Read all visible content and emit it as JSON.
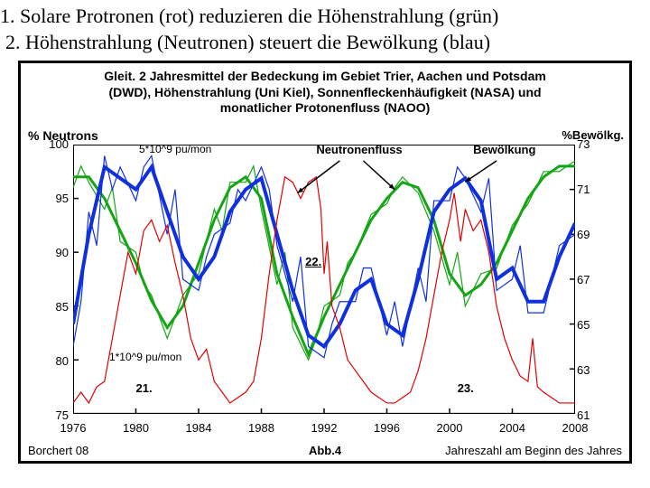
{
  "caption": {
    "line1": "1. Solare Protronen (rot) reduzieren die Höhenstrahlung (grün)",
    "line2": "2. Höhenstrahlung (Neutronen) steuert die Bewölkung (blau)"
  },
  "chart": {
    "title_l1": "Gleit. 2 Jahresmittel der Bedeckung im Gebiet Trier, Aachen und Potsdam",
    "title_l2": "(DWD), Höhenstrahlung (Uni Kiel), Sonnenfleckenhäufigkeit (NASA) und",
    "title_l3": "monatlicher Protonenfluss (NAOO)",
    "left_axis_label": "% Neutrons",
    "right_axis_label": "%Bewölkg.",
    "left_ticks": [
      100,
      95,
      90,
      85,
      80,
      75
    ],
    "right_ticks": [
      73,
      71,
      69,
      67,
      65,
      63,
      61
    ],
    "x_ticks": [
      1976,
      1980,
      1984,
      1988,
      1992,
      1996,
      2000,
      2004,
      2008
    ],
    "x_min": 1976,
    "x_max": 2008,
    "yl_min": 75,
    "yl_max": 100,
    "yr_min": 61,
    "yr_max": 73,
    "colors": {
      "green": "#14a514",
      "blue": "#1030e0",
      "red": "#e00000",
      "axis": "#000000",
      "bg": "#ffffff"
    },
    "line_widths": {
      "green_thick": 3,
      "blue_thick": 4,
      "red": 1.2,
      "thin": 1.2
    },
    "annotations": {
      "neutronenfluss": "Neutronenfluss",
      "bewoelkung": "Bewölkung",
      "upper_note": "5*10^9 pu/mon",
      "lower_note": "1*10^9 pu/mon",
      "cyc21": "21.",
      "cyc22": "22.",
      "cyc23": "23."
    },
    "footer": {
      "left": "Borchert 08",
      "center": "Abb.4",
      "right": "Jahreszahl am Beginn des Jahres"
    },
    "series": {
      "green_thick": [
        [
          1976,
          97
        ],
        [
          1977,
          97
        ],
        [
          1978,
          95
        ],
        [
          1979,
          92
        ],
        [
          1980,
          89
        ],
        [
          1981,
          85.5
        ],
        [
          1982,
          83
        ],
        [
          1983,
          85
        ],
        [
          1984,
          89
        ],
        [
          1985,
          93
        ],
        [
          1986,
          96
        ],
        [
          1987,
          97
        ],
        [
          1988,
          95
        ],
        [
          1989,
          88
        ],
        [
          1990,
          84
        ],
        [
          1991,
          80.5
        ],
        [
          1992,
          84
        ],
        [
          1993,
          87
        ],
        [
          1994,
          90
        ],
        [
          1995,
          93
        ],
        [
          1996,
          95
        ],
        [
          1997,
          96.5
        ],
        [
          1998,
          96
        ],
        [
          1999,
          93
        ],
        [
          2000,
          88
        ],
        [
          2001,
          86
        ],
        [
          2002,
          87
        ],
        [
          2003,
          89
        ],
        [
          2004,
          92
        ],
        [
          2005,
          95
        ],
        [
          2006,
          97
        ],
        [
          2007,
          98
        ],
        [
          2008,
          98
        ]
      ],
      "green_thin": [
        [
          1976,
          96
        ],
        [
          1976.5,
          98
        ],
        [
          1977,
          96.5
        ],
        [
          1978,
          94
        ],
        [
          1978.5,
          96
        ],
        [
          1979,
          91
        ],
        [
          1980,
          90
        ],
        [
          1980.5,
          87
        ],
        [
          1981,
          86
        ],
        [
          1982,
          82
        ],
        [
          1982.5,
          84
        ],
        [
          1983,
          86
        ],
        [
          1984,
          88
        ],
        [
          1985,
          94
        ],
        [
          1985.5,
          92
        ],
        [
          1986,
          96.5
        ],
        [
          1987,
          96.5
        ],
        [
          1987.5,
          98
        ],
        [
          1988,
          94
        ],
        [
          1989,
          87
        ],
        [
          1989.5,
          90
        ],
        [
          1990,
          83
        ],
        [
          1991,
          80
        ],
        [
          1991.5,
          82
        ],
        [
          1992,
          85
        ],
        [
          1993,
          86
        ],
        [
          1993.5,
          89
        ],
        [
          1994,
          90
        ],
        [
          1995,
          93.5
        ],
        [
          1996,
          94.5
        ],
        [
          1996.5,
          96
        ],
        [
          1997,
          97
        ],
        [
          1998,
          95.5
        ],
        [
          1999,
          92
        ],
        [
          2000,
          87
        ],
        [
          2000.5,
          90
        ],
        [
          2001,
          85
        ],
        [
          2002,
          88
        ],
        [
          2003,
          88.5
        ],
        [
          2004,
          92.5
        ],
        [
          2005,
          94.5
        ],
        [
          2005.5,
          96
        ],
        [
          2006,
          97.5
        ],
        [
          2007,
          97.5
        ],
        [
          2008,
          98.5
        ]
      ],
      "blue_thick": [
        [
          1976,
          65
        ],
        [
          1977,
          69
        ],
        [
          1978,
          72
        ],
        [
          1979,
          71.5
        ],
        [
          1980,
          71
        ],
        [
          1981,
          72
        ],
        [
          1982,
          70
        ],
        [
          1983,
          68
        ],
        [
          1984,
          67
        ],
        [
          1985,
          68
        ],
        [
          1986,
          70
        ],
        [
          1987,
          71
        ],
        [
          1988,
          71.5
        ],
        [
          1989,
          69
        ],
        [
          1990,
          66.5
        ],
        [
          1991,
          64.5
        ],
        [
          1992,
          64
        ],
        [
          1993,
          65
        ],
        [
          1994,
          66.5
        ],
        [
          1995,
          67
        ],
        [
          1996,
          65
        ],
        [
          1997,
          64.5
        ],
        [
          1998,
          67
        ],
        [
          1999,
          70
        ],
        [
          2000,
          71
        ],
        [
          2001,
          71.5
        ],
        [
          2002,
          70.5
        ],
        [
          2003,
          67
        ],
        [
          2004,
          67.5
        ],
        [
          2005,
          66
        ],
        [
          2006,
          66
        ],
        [
          2007,
          68
        ],
        [
          2008,
          69.5
        ]
      ],
      "blue_thin": [
        [
          1976,
          64
        ],
        [
          1976.5,
          66
        ],
        [
          1977,
          70
        ],
        [
          1977.5,
          68.5
        ],
        [
          1978,
          72.5
        ],
        [
          1978.5,
          71
        ],
        [
          1979,
          72
        ],
        [
          1980,
          70.5
        ],
        [
          1980.5,
          72
        ],
        [
          1981,
          72.5
        ],
        [
          1982,
          69
        ],
        [
          1982.5,
          71
        ],
        [
          1983,
          67
        ],
        [
          1984,
          66.5
        ],
        [
          1984.5,
          68
        ],
        [
          1985,
          69
        ],
        [
          1986,
          69.5
        ],
        [
          1986.5,
          71
        ],
        [
          1987,
          70.5
        ],
        [
          1988,
          72
        ],
        [
          1988.5,
          71
        ],
        [
          1989,
          68.5
        ],
        [
          1990,
          66
        ],
        [
          1990.5,
          68
        ],
        [
          1991,
          64
        ],
        [
          1992,
          63.5
        ],
        [
          1992.5,
          65
        ],
        [
          1993,
          66
        ],
        [
          1994,
          66
        ],
        [
          1994.5,
          67.5
        ],
        [
          1995,
          67.5
        ],
        [
          1996,
          64.5
        ],
        [
          1996.5,
          66
        ],
        [
          1997,
          64
        ],
        [
          1998,
          67.5
        ],
        [
          1998.5,
          66
        ],
        [
          1999,
          70.5
        ],
        [
          2000,
          70.5
        ],
        [
          2000.5,
          72
        ],
        [
          2001,
          71.5
        ],
        [
          2002,
          70
        ],
        [
          2002.5,
          71.5
        ],
        [
          2003,
          66.5
        ],
        [
          2004,
          67
        ],
        [
          2004.5,
          68.5
        ],
        [
          2005,
          65.5
        ],
        [
          2006,
          65.5
        ],
        [
          2006.5,
          67
        ],
        [
          2007,
          68.5
        ],
        [
          2008,
          69
        ]
      ],
      "red": [
        [
          1976,
          76
        ],
        [
          1976.5,
          77
        ],
        [
          1977,
          76
        ],
        [
          1977.5,
          77.5
        ],
        [
          1978,
          78
        ],
        [
          1978.5,
          82
        ],
        [
          1979,
          86
        ],
        [
          1979.5,
          90
        ],
        [
          1980,
          88
        ],
        [
          1980.5,
          92
        ],
        [
          1981,
          93
        ],
        [
          1981.5,
          91
        ],
        [
          1982,
          92.5
        ],
        [
          1982.5,
          89
        ],
        [
          1983,
          86
        ],
        [
          1983.5,
          82
        ],
        [
          1984,
          80
        ],
        [
          1984.5,
          81
        ],
        [
          1985,
          78
        ],
        [
          1985.5,
          77
        ],
        [
          1986,
          76
        ],
        [
          1986.5,
          76.5
        ],
        [
          1987,
          77
        ],
        [
          1987.5,
          78
        ],
        [
          1988,
          82
        ],
        [
          1988.5,
          88
        ],
        [
          1989,
          93
        ],
        [
          1989.5,
          97
        ],
        [
          1990,
          96.5
        ],
        [
          1990.5,
          95
        ],
        [
          1991,
          96.5
        ],
        [
          1991.5,
          97
        ],
        [
          1991.8,
          94
        ],
        [
          1992,
          88
        ],
        [
          1992.2,
          91
        ],
        [
          1992.5,
          85
        ],
        [
          1993,
          83
        ],
        [
          1993.5,
          80
        ],
        [
          1994,
          79
        ],
        [
          1994.5,
          78
        ],
        [
          1995,
          77
        ],
        [
          1995.5,
          76.5
        ],
        [
          1996,
          76
        ],
        [
          1996.5,
          76
        ],
        [
          1997,
          76.5
        ],
        [
          1997.5,
          77
        ],
        [
          1998,
          79
        ],
        [
          1998.5,
          82
        ],
        [
          1999,
          86
        ],
        [
          1999.5,
          90
        ],
        [
          2000,
          93
        ],
        [
          2000.3,
          95.5
        ],
        [
          2000.7,
          91
        ],
        [
          2001,
          94
        ],
        [
          2001.5,
          92
        ],
        [
          2002,
          93
        ],
        [
          2002.5,
          90
        ],
        [
          2003,
          85
        ],
        [
          2003.5,
          82
        ],
        [
          2004,
          80
        ],
        [
          2004.5,
          78.5
        ],
        [
          2005,
          78
        ],
        [
          2005.3,
          82
        ],
        [
          2005.6,
          77.5
        ],
        [
          2006,
          77
        ],
        [
          2006.5,
          76.5
        ],
        [
          2007,
          76
        ],
        [
          2007.5,
          76
        ],
        [
          2008,
          76
        ]
      ]
    }
  }
}
